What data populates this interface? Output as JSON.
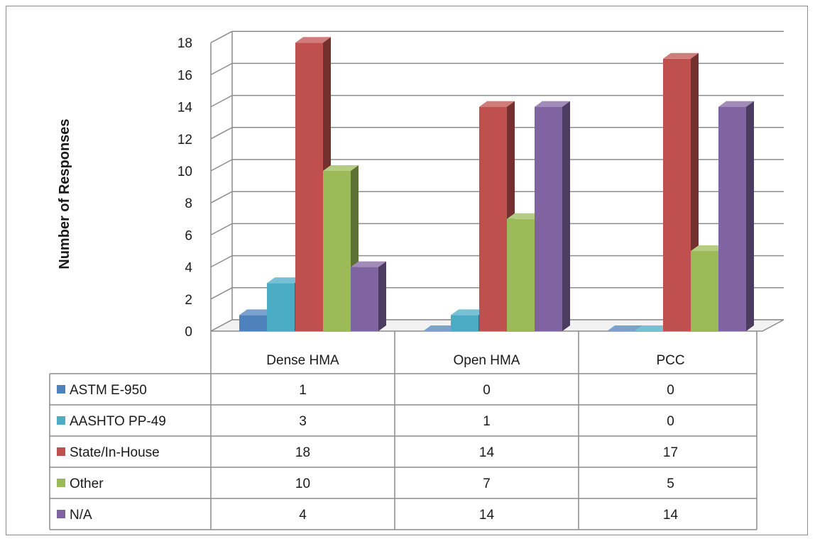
{
  "chart_data": {
    "type": "bar",
    "title": "",
    "xlabel": "",
    "ylabel": "Number of Responses",
    "ylim": [
      0,
      18
    ],
    "yticks": [
      0,
      2,
      4,
      6,
      8,
      10,
      12,
      14,
      16,
      18
    ],
    "grid": true,
    "categories": [
      "Dense HMA",
      "Open HMA",
      "PCC"
    ],
    "series": [
      {
        "name": "ASTM E-950",
        "color": "#4f81bd",
        "values": [
          1,
          0,
          0
        ]
      },
      {
        "name": "AASHTO PP-49",
        "color": "#4bacc6",
        "values": [
          3,
          1,
          0
        ]
      },
      {
        "name": "State/In-House",
        "color": "#c0504d",
        "values": [
          18,
          14,
          17
        ]
      },
      {
        "name": "Other",
        "color": "#9bbb59",
        "values": [
          10,
          7,
          5
        ]
      },
      {
        "name": "N/A",
        "color": "#8064a2",
        "values": [
          4,
          14,
          14
        ]
      }
    ]
  }
}
